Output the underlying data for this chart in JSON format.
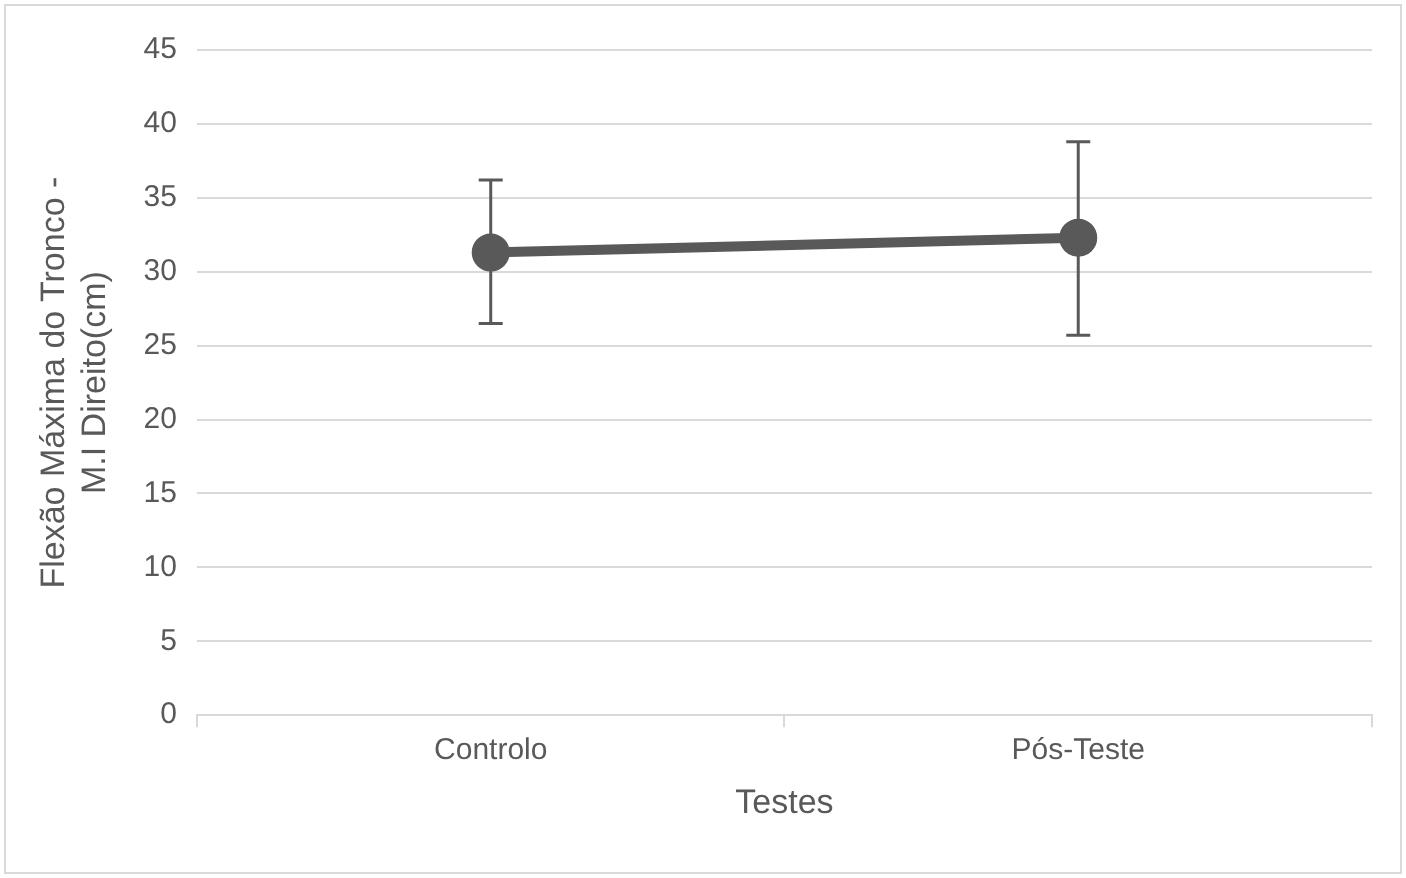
{
  "chart_data": {
    "type": "line",
    "xlabel": "Testes",
    "ylabel": "Flexão Máxima do Tronco - M.I Direito(cm)",
    "categories": [
      "Controlo",
      "Pós-Teste"
    ],
    "series": [
      {
        "color": "#595959",
        "values": [
          31.3,
          32.3
        ],
        "errors": [
          [
            26.5,
            36.2
          ],
          [
            25.7,
            38.8
          ]
        ]
      }
    ],
    "ylim": [
      0,
      45
    ],
    "yticks": [
      0,
      5,
      10,
      15,
      20,
      25,
      30,
      35,
      40,
      45
    ],
    "grid": "y",
    "legend": false,
    "marker": "circle",
    "line_style": "solid"
  }
}
